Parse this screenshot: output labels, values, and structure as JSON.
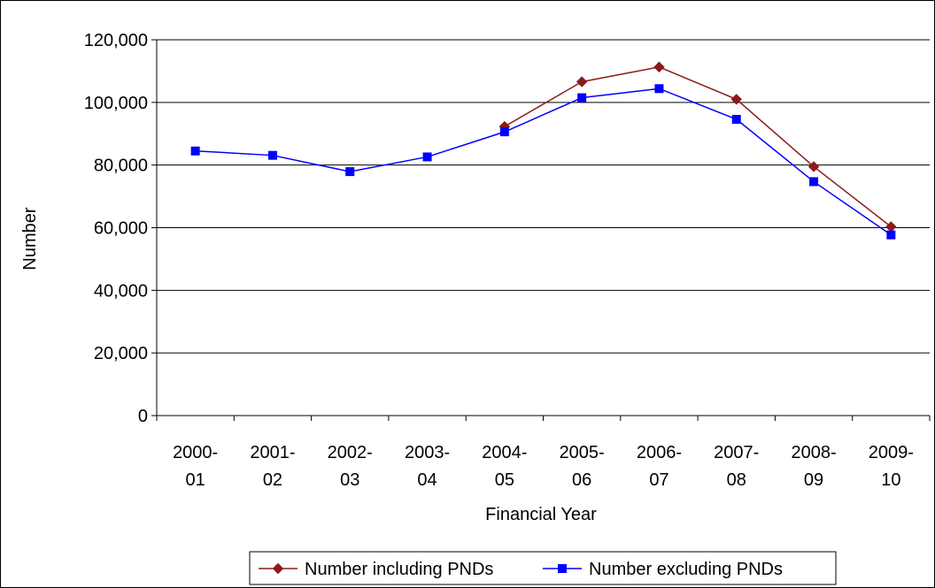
{
  "chart_data": {
    "type": "line",
    "title": "",
    "xlabel": "Financial Year",
    "ylabel": "Number",
    "categories": [
      [
        "2000-",
        "01"
      ],
      [
        "2001-",
        "02"
      ],
      [
        "2002-",
        "03"
      ],
      [
        "2003-",
        "04"
      ],
      [
        "2004-",
        "05"
      ],
      [
        "2005-",
        "06"
      ],
      [
        "2006-",
        "07"
      ],
      [
        "2007-",
        "08"
      ],
      [
        "2008-",
        "09"
      ],
      [
        "2009-",
        "10"
      ]
    ],
    "ylim": [
      0,
      120000
    ],
    "yticks": [
      0,
      20000,
      40000,
      60000,
      80000,
      100000,
      120000
    ],
    "ytick_labels": [
      "0",
      "20,000",
      "40,000",
      "60,000",
      "80,000",
      "100,000",
      "120,000"
    ],
    "grid": "horizontal",
    "legend_position": "bottom",
    "series": [
      {
        "name": "Number including PNDs",
        "color": "#8b1a1a",
        "marker": "diamond",
        "values": [
          null,
          null,
          null,
          null,
          92300,
          106600,
          111300,
          101000,
          79500,
          60300
        ]
      },
      {
        "name": "Number excluding PNDs",
        "color": "#0000ff",
        "marker": "square",
        "values": [
          84500,
          83100,
          77900,
          82600,
          90600,
          101500,
          104400,
          94600,
          74700,
          57700
        ]
      }
    ]
  }
}
